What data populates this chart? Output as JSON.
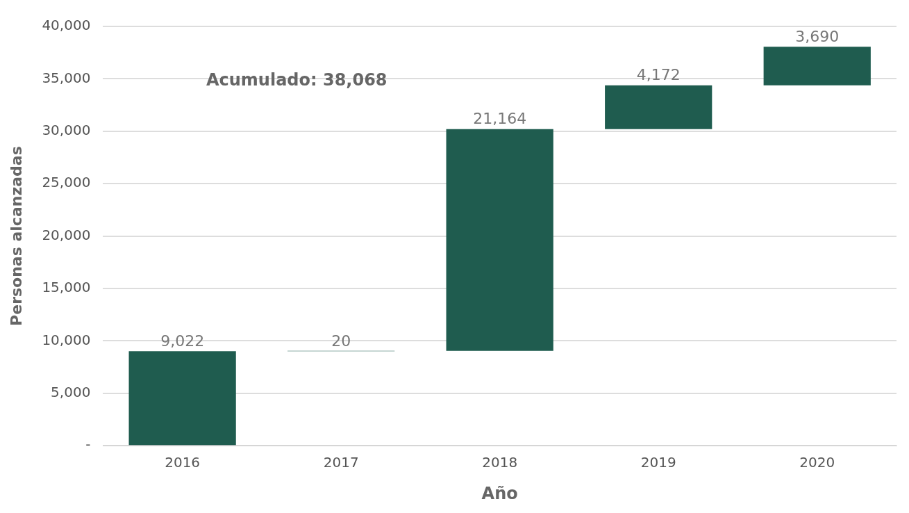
{
  "chart_data": {
    "type": "bar",
    "xlabel": "Año",
    "ylabel": "Personas alcanzadas",
    "categories": [
      "2016",
      "2017",
      "2018",
      "2019",
      "2020"
    ],
    "values": [
      9022,
      20,
      21164,
      4172,
      3690
    ],
    "base": [
      0,
      9022,
      9042,
      30206,
      34378
    ],
    "value_labels": [
      "9,022",
      "20",
      "21,164",
      "4,172",
      "3,690"
    ],
    "color": "#1f5c4f",
    "ylim": [
      0,
      40000
    ],
    "yticks": [
      {
        "value": 0,
        "label": "-"
      },
      {
        "value": 5000,
        "label": "5,000"
      },
      {
        "value": 10000,
        "label": "10,000"
      },
      {
        "value": 15000,
        "label": "15,000"
      },
      {
        "value": 20000,
        "label": "20,000"
      },
      {
        "value": 25000,
        "label": "25,000"
      },
      {
        "value": 30000,
        "label": "30,000"
      },
      {
        "value": 35000,
        "label": "35,000"
      },
      {
        "value": 40000,
        "label": "40,000"
      }
    ],
    "grid": "y",
    "annotations": [
      "Acumulado: 38,068"
    ]
  }
}
